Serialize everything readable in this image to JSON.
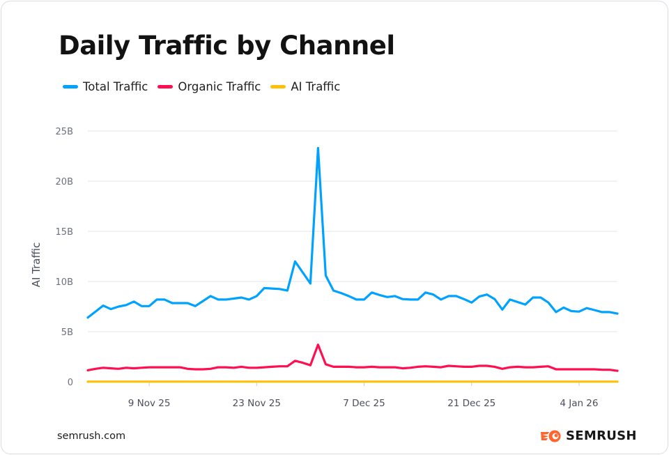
{
  "footer": {
    "url": "semrush.com",
    "brand": "SEMRUSH"
  },
  "colors": {
    "total": "#00a2ff",
    "organic": "#ff0f4f",
    "ai": "#ffc107",
    "logo": "#ff642d"
  },
  "chart_data": {
    "type": "line",
    "title": "Daily Traffic by Channel",
    "xlabel": "",
    "ylabel": "AI Traffic",
    "ylim": [
      0,
      25
    ],
    "y_ticks": [
      0,
      5,
      10,
      15,
      20,
      25
    ],
    "y_tick_labels": [
      "0",
      "5B",
      "10B",
      "15B",
      "20B",
      "25B"
    ],
    "x_start": "2025-11-01",
    "x_ticks": [
      {
        "date": "2025-11-09",
        "label": "9 Nov 25"
      },
      {
        "date": "2025-11-23",
        "label": "23 Nov 25"
      },
      {
        "date": "2025-12-07",
        "label": "7 Dec 25"
      },
      {
        "date": "2025-12-21",
        "label": "21 Dec 25"
      },
      {
        "date": "2026-01-04",
        "label": "4 Jan 26"
      }
    ],
    "grid": "horizontal",
    "legend_position": "top-left",
    "unit": "B",
    "series": [
      {
        "name": "Total Traffic",
        "color": "#00a2ff",
        "values": [
          6.4,
          7.0,
          7.6,
          7.25,
          7.5,
          7.65,
          8.0,
          7.55,
          7.55,
          8.2,
          8.2,
          7.85,
          7.85,
          7.85,
          7.55,
          8.05,
          8.55,
          8.2,
          8.2,
          8.3,
          8.4,
          8.2,
          8.55,
          9.35,
          9.3,
          9.25,
          9.1,
          12.0,
          10.9,
          9.8,
          23.3,
          10.6,
          9.1,
          8.85,
          8.55,
          8.2,
          8.2,
          8.9,
          8.65,
          8.45,
          8.55,
          8.25,
          8.2,
          8.2,
          8.9,
          8.7,
          8.2,
          8.55,
          8.55,
          8.25,
          7.9,
          8.5,
          8.7,
          8.25,
          7.2,
          8.2,
          7.95,
          7.7,
          8.4,
          8.4,
          7.9,
          6.95,
          7.4,
          7.05,
          7.0,
          7.35,
          7.15,
          6.95,
          6.95,
          6.8
        ]
      },
      {
        "name": "Organic Traffic",
        "color": "#ff0f4f",
        "values": [
          1.15,
          1.3,
          1.4,
          1.35,
          1.3,
          1.4,
          1.35,
          1.4,
          1.45,
          1.45,
          1.45,
          1.45,
          1.45,
          1.3,
          1.25,
          1.25,
          1.3,
          1.45,
          1.45,
          1.4,
          1.5,
          1.4,
          1.4,
          1.45,
          1.5,
          1.55,
          1.55,
          2.1,
          1.9,
          1.65,
          3.7,
          1.75,
          1.5,
          1.5,
          1.5,
          1.45,
          1.45,
          1.5,
          1.45,
          1.45,
          1.45,
          1.35,
          1.4,
          1.5,
          1.55,
          1.5,
          1.45,
          1.6,
          1.55,
          1.5,
          1.5,
          1.6,
          1.6,
          1.5,
          1.3,
          1.45,
          1.5,
          1.45,
          1.45,
          1.5,
          1.55,
          1.25,
          1.25,
          1.25,
          1.25,
          1.25,
          1.25,
          1.2,
          1.2,
          1.1
        ]
      },
      {
        "name": "AI Traffic",
        "color": "#ffc107",
        "values": [
          0.02,
          0.02,
          0.02,
          0.02,
          0.02,
          0.02,
          0.02,
          0.02,
          0.02,
          0.02,
          0.02,
          0.02,
          0.02,
          0.02,
          0.02,
          0.02,
          0.02,
          0.02,
          0.02,
          0.02,
          0.02,
          0.02,
          0.02,
          0.02,
          0.02,
          0.02,
          0.02,
          0.02,
          0.02,
          0.02,
          0.02,
          0.02,
          0.02,
          0.02,
          0.02,
          0.02,
          0.02,
          0.02,
          0.02,
          0.02,
          0.02,
          0.02,
          0.02,
          0.02,
          0.02,
          0.02,
          0.02,
          0.02,
          0.02,
          0.02,
          0.02,
          0.02,
          0.02,
          0.02,
          0.02,
          0.02,
          0.02,
          0.02,
          0.02,
          0.02,
          0.02,
          0.02,
          0.02,
          0.02,
          0.02,
          0.02,
          0.02,
          0.02,
          0.02,
          0.02
        ]
      }
    ]
  }
}
